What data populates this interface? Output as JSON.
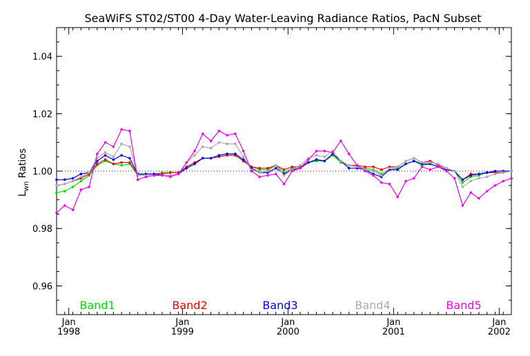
{
  "chart_data": {
    "type": "line",
    "title": "SeaWiFS ST02/ST00 4-Day Water-Leaving Radiance Ratios, PacN Subset",
    "ylabel": {
      "main": "L",
      "sub": "wn",
      "rest": " Ratios"
    },
    "ylim": [
      0.95,
      1.05
    ],
    "xlim": [
      0,
      56
    ],
    "yticks": [
      0.96,
      0.98,
      1.0,
      1.02,
      1.04
    ],
    "ytick_labels": [
      "0.96",
      "0.98",
      "1.00",
      "1.02",
      "1.04"
    ],
    "reference_line": 1.0,
    "xticks": [
      {
        "x": 1.5,
        "month": "Jan",
        "year": "1998"
      },
      {
        "x": 15.5,
        "month": "Jan",
        "year": "1999"
      },
      {
        "x": 28.5,
        "month": "Jan",
        "year": "2000"
      },
      {
        "x": 41.5,
        "month": "Jan",
        "year": "2001"
      },
      {
        "x": 54.5,
        "month": "Jan",
        "year": "2002"
      }
    ],
    "x": [
      0,
      1,
      2,
      3,
      4,
      5,
      6,
      7,
      8,
      9,
      10,
      11,
      12,
      13,
      14,
      15,
      16,
      17,
      18,
      19,
      20,
      21,
      22,
      23,
      24,
      25,
      26,
      27,
      28,
      29,
      30,
      31,
      32,
      33,
      34,
      35,
      36,
      37,
      38,
      39,
      40,
      41,
      42,
      43,
      44,
      45,
      46,
      47,
      48,
      49,
      50,
      51,
      52,
      53,
      54,
      55,
      56
    ],
    "series": [
      {
        "name": "Band1",
        "color": "#00dd00",
        "values": [
          0.9925,
          0.993,
          0.9945,
          0.9965,
          0.9985,
          1.002,
          1.0035,
          1.0025,
          1.002,
          1.0025,
          0.9985,
          0.999,
          0.999,
          0.9995,
          0.9995,
          0.9995,
          1.001,
          1.0025,
          1.0045,
          1.0045,
          1.0055,
          1.006,
          1.006,
          1.004,
          1.0015,
          1.0005,
          1.0005,
          1.002,
          0.9995,
          1.001,
          1.0015,
          1.003,
          1.0035,
          1.0035,
          1.0055,
          1.003,
          1.002,
          1.0015,
          1.001,
          1.0005,
          0.999,
          1.0005,
          1.001,
          1.0025,
          1.0035,
          1.002,
          1.0025,
          1.0015,
          1.0005,
          1.0,
          0.996,
          0.998,
          0.9985,
          0.9995,
          0.9995,
          0.9995,
          1.0
        ]
      },
      {
        "name": "Band2",
        "color": "#ee0000",
        "values": [
          0.995,
          0.9955,
          0.9965,
          0.9975,
          0.999,
          1.0025,
          1.004,
          1.0025,
          1.003,
          1.003,
          0.999,
          0.999,
          0.999,
          0.999,
          0.9995,
          0.9995,
          1.0015,
          1.003,
          1.0045,
          1.0045,
          1.005,
          1.0055,
          1.0055,
          1.0035,
          1.0015,
          1.001,
          1.001,
          1.002,
          1.0005,
          1.0015,
          1.0015,
          1.003,
          1.004,
          1.0035,
          1.006,
          1.0035,
          1.002,
          1.002,
          1.0015,
          1.0015,
          1.0005,
          1.0015,
          1.0015,
          1.0035,
          1.0045,
          1.003,
          1.0035,
          1.002,
          1.001,
          1.0,
          0.997,
          0.999,
          0.999,
          0.9995,
          0.9995,
          0.9995,
          1.0
        ]
      },
      {
        "name": "Band3",
        "color": "#0000ee",
        "values": [
          0.997,
          0.997,
          0.9975,
          0.999,
          0.9995,
          1.0035,
          1.0055,
          1.004,
          1.0055,
          1.0045,
          0.999,
          0.999,
          0.999,
          0.9985,
          0.9985,
          0.999,
          1.001,
          1.0025,
          1.0045,
          1.0045,
          1.0055,
          1.006,
          1.006,
          1.004,
          1.001,
          0.9995,
          0.9995,
          1.001,
          0.999,
          1.0005,
          1.001,
          1.003,
          1.004,
          1.0035,
          1.006,
          1.0035,
          1.001,
          1.001,
          1.0005,
          0.999,
          0.998,
          1.0005,
          1.0005,
          1.0025,
          1.0035,
          1.0025,
          1.0025,
          1.0015,
          1.0005,
          1.0,
          0.997,
          0.9985,
          0.999,
          0.9995,
          1.0,
          1.0,
          1.0
        ]
      },
      {
        "name": "Band4",
        "color": "#aaaaaa",
        "values": [
          0.995,
          0.9955,
          0.9965,
          0.998,
          0.9995,
          1.0045,
          1.0065,
          1.005,
          1.0095,
          1.0085,
          0.9985,
          0.9985,
          0.9985,
          0.9985,
          0.9985,
          0.999,
          1.003,
          1.0055,
          1.0085,
          1.008,
          1.01,
          1.0095,
          1.0095,
          1.005,
          1.0005,
          0.9995,
          1.0,
          1.002,
          0.9985,
          1.0005,
          1.002,
          1.0045,
          1.0055,
          1.005,
          1.007,
          1.0035,
          1.002,
          1.0015,
          1.0005,
          1.0,
          0.9985,
          1.001,
          1.0015,
          1.0035,
          1.0045,
          1.003,
          1.003,
          1.0025,
          1.001,
          1.0,
          0.9945,
          0.9965,
          0.9975,
          0.998,
          0.999,
          0.9995,
          1.0
        ]
      },
      {
        "name": "Band5",
        "color": "#ee00ee",
        "values": [
          0.9855,
          0.988,
          0.9865,
          0.9935,
          0.9945,
          1.006,
          1.01,
          1.0085,
          1.0145,
          1.014,
          0.997,
          0.998,
          0.9985,
          0.9985,
          0.998,
          0.999,
          1.003,
          1.007,
          1.013,
          1.0105,
          1.014,
          1.0125,
          1.013,
          1.007,
          1.0,
          0.998,
          0.9985,
          0.999,
          0.9955,
          1.0,
          1.001,
          1.004,
          1.007,
          1.007,
          1.0065,
          1.0105,
          1.006,
          1.002,
          1.0,
          0.9985,
          0.996,
          0.9955,
          0.991,
          0.9965,
          0.9975,
          1.0015,
          1.0005,
          1.0015,
          1.0,
          0.9975,
          0.988,
          0.9925,
          0.9905,
          0.993,
          0.995,
          0.9965,
          0.9975
        ]
      }
    ]
  }
}
